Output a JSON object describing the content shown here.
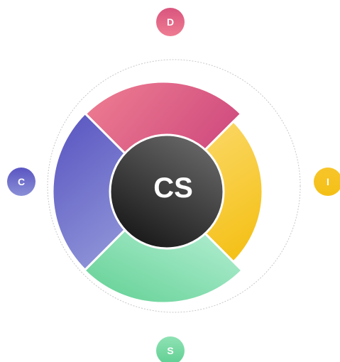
{
  "center": {
    "label": "CS"
  },
  "nodes": [
    {
      "label": "D"
    },
    {
      "label": "I"
    },
    {
      "label": "S"
    },
    {
      "label": "C"
    }
  ]
}
